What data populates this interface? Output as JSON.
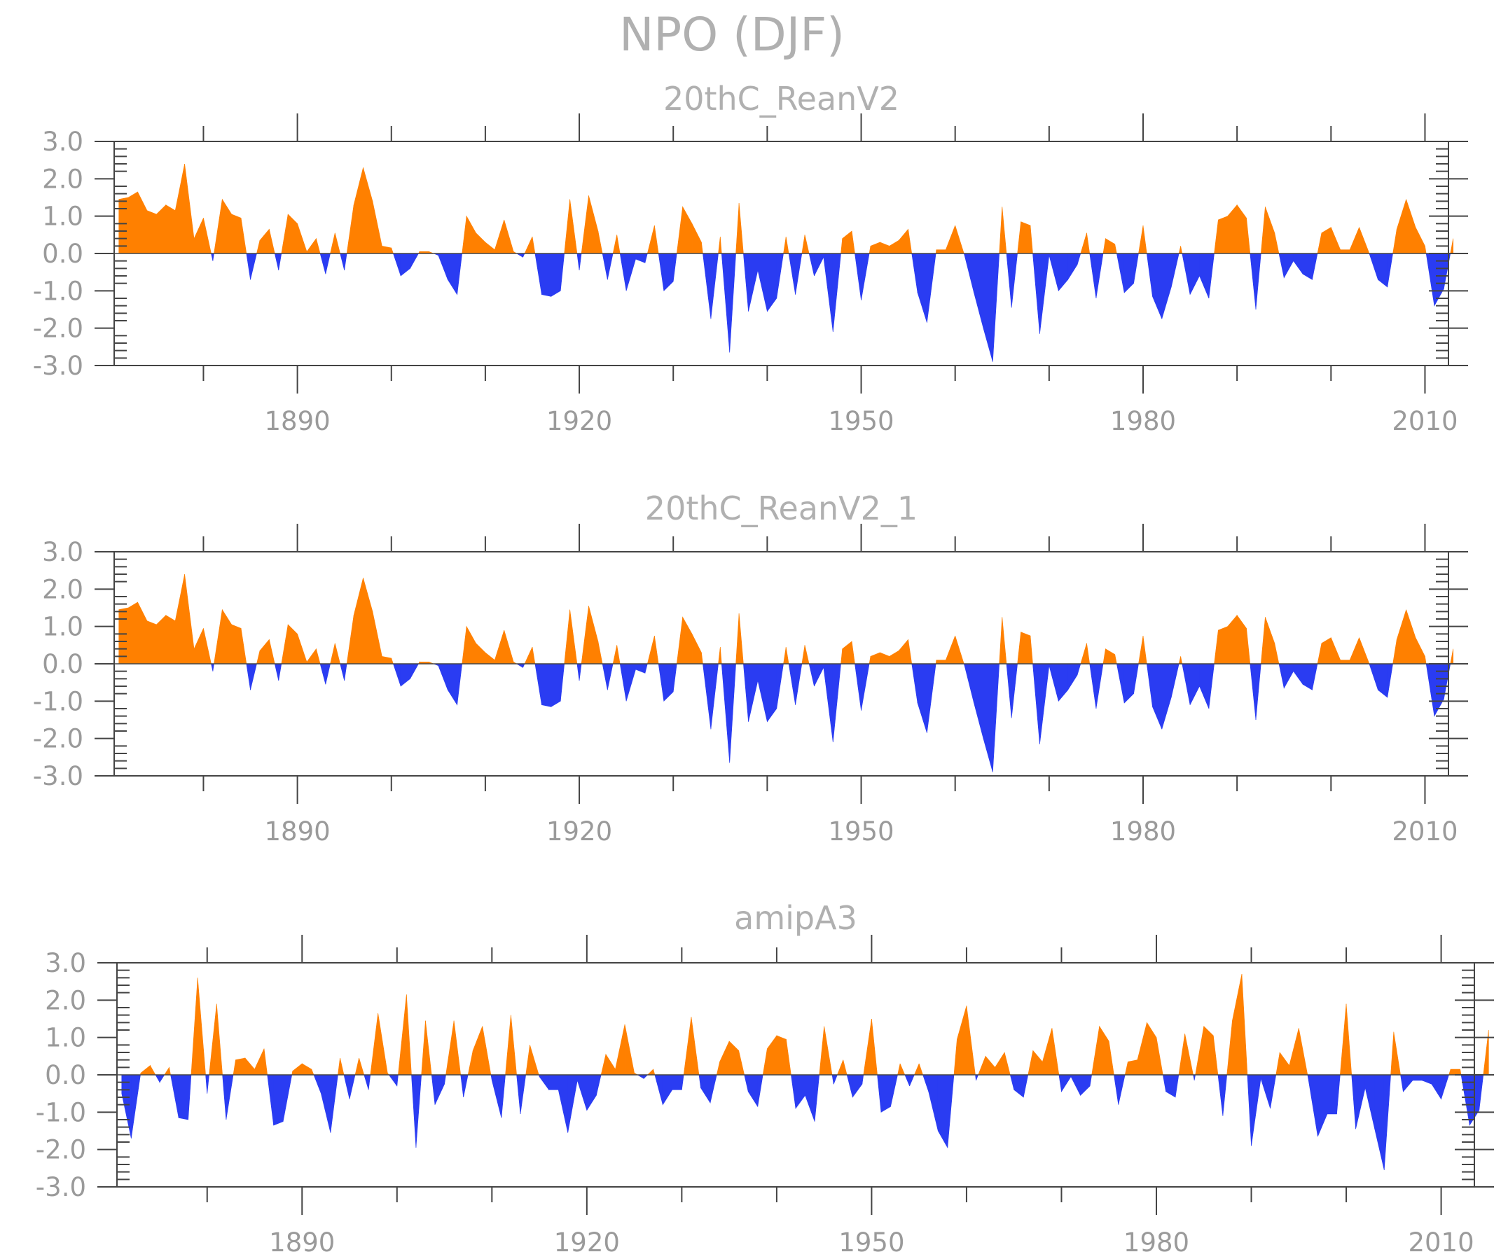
{
  "figure_title": "NPO (DJF)",
  "colors": {
    "positive": "#ff8000",
    "negative": "#2a3cf2",
    "axis": "#444444",
    "text": "#a0a0a0"
  },
  "chart_data": [
    {
      "type": "area",
      "title": "20thC_ReanV2",
      "xlabel": "",
      "ylabel": "",
      "ylim": [
        -3,
        3
      ],
      "yticks": [
        "3.0",
        "2.0",
        "1.0",
        "0.0",
        "-1.0",
        "-2.0",
        "-3.0"
      ],
      "xlim": [
        1870.5,
        2012.5
      ],
      "xticks": [
        "1890",
        "1920",
        "1950",
        "1980",
        "2010"
      ],
      "x_start": 1871,
      "values": [
        1.45,
        1.5,
        1.65,
        1.15,
        1.05,
        1.3,
        1.15,
        2.4,
        0.4,
        0.95,
        -0.2,
        1.45,
        1.05,
        0.95,
        -0.7,
        0.35,
        0.65,
        -0.45,
        1.05,
        0.8,
        0.05,
        0.4,
        -0.55,
        0.55,
        -0.45,
        1.3,
        2.3,
        1.4,
        0.2,
        0.15,
        -0.6,
        -0.4,
        0.05,
        0.05,
        -0.05,
        -0.7,
        -1.1,
        1.0,
        0.55,
        0.3,
        0.1,
        0.9,
        0.05,
        -0.1,
        0.45,
        -1.1,
        -1.15,
        -1.0,
        1.45,
        -0.45,
        1.55,
        0.6,
        -0.7,
        0.5,
        -1.0,
        -0.15,
        -0.25,
        0.75,
        -1.0,
        -0.75,
        1.25,
        0.8,
        0.3,
        -1.75,
        0.45,
        -2.65,
        1.35,
        -1.55,
        -0.45,
        -1.55,
        -1.2,
        0.45,
        -1.1,
        0.5,
        -0.6,
        -0.1,
        -2.1,
        0.4,
        0.6,
        -1.25,
        0.2,
        0.3,
        0.2,
        0.35,
        0.65,
        -1.05,
        -1.85,
        0.1,
        0.1,
        0.75,
        -0.05,
        -1.05,
        -2.0,
        -2.9,
        1.25,
        -1.45,
        0.85,
        0.75,
        -2.15,
        -0.05,
        -1.0,
        -0.7,
        -0.3,
        0.55,
        -1.2,
        0.4,
        0.25,
        -1.05,
        -0.8,
        0.75,
        -1.15,
        -1.75,
        -0.9,
        0.2,
        -1.1,
        -0.6,
        -1.2,
        0.9,
        1.0,
        1.3,
        0.95,
        -1.5,
        1.25,
        0.55,
        -0.65,
        -0.2,
        -0.55,
        -0.7,
        0.55,
        0.7,
        0.1,
        0.1,
        0.7,
        0.05,
        -0.7,
        -0.9,
        0.65,
        1.45,
        0.7,
        0.2,
        -1.4,
        -0.95,
        0.4
      ]
    },
    {
      "type": "area",
      "title": "20thC_ReanV2_1",
      "xlabel": "",
      "ylabel": "",
      "ylim": [
        -3,
        3
      ],
      "yticks": [
        "3.0",
        "2.0",
        "1.0",
        "0.0",
        "-1.0",
        "-2.0",
        "-3.0"
      ],
      "xlim": [
        1870.5,
        2012.5
      ],
      "xticks": [
        "1890",
        "1920",
        "1950",
        "1980",
        "2010"
      ],
      "x_start": 1871,
      "values": [
        1.45,
        1.5,
        1.65,
        1.15,
        1.05,
        1.3,
        1.15,
        2.4,
        0.4,
        0.95,
        -0.2,
        1.45,
        1.05,
        0.95,
        -0.7,
        0.35,
        0.65,
        -0.45,
        1.05,
        0.8,
        0.05,
        0.4,
        -0.55,
        0.55,
        -0.45,
        1.3,
        2.3,
        1.4,
        0.2,
        0.15,
        -0.6,
        -0.4,
        0.05,
        0.05,
        -0.05,
        -0.7,
        -1.1,
        1.0,
        0.55,
        0.3,
        0.1,
        0.9,
        0.05,
        -0.1,
        0.45,
        -1.1,
        -1.15,
        -1.0,
        1.45,
        -0.45,
        1.55,
        0.6,
        -0.7,
        0.5,
        -1.0,
        -0.15,
        -0.25,
        0.75,
        -1.0,
        -0.75,
        1.25,
        0.8,
        0.3,
        -1.75,
        0.45,
        -2.65,
        1.35,
        -1.55,
        -0.45,
        -1.55,
        -1.2,
        0.45,
        -1.1,
        0.5,
        -0.6,
        -0.1,
        -2.1,
        0.4,
        0.6,
        -1.25,
        0.2,
        0.3,
        0.2,
        0.35,
        0.65,
        -1.05,
        -1.85,
        0.1,
        0.1,
        0.75,
        -0.05,
        -1.05,
        -2.0,
        -2.9,
        1.25,
        -1.45,
        0.85,
        0.75,
        -2.15,
        -0.05,
        -1.0,
        -0.7,
        -0.3,
        0.55,
        -1.2,
        0.4,
        0.25,
        -1.05,
        -0.8,
        0.75,
        -1.15,
        -1.75,
        -0.9,
        0.2,
        -1.1,
        -0.6,
        -1.2,
        0.9,
        1.0,
        1.3,
        0.95,
        -1.5,
        1.25,
        0.55,
        -0.65,
        -0.2,
        -0.55,
        -0.7,
        0.55,
        0.7,
        0.1,
        0.1,
        0.7,
        0.05,
        -0.7,
        -0.9,
        0.65,
        1.45,
        0.7,
        0.2,
        -1.4,
        -0.95,
        0.4
      ]
    },
    {
      "type": "area",
      "title": "amipA3",
      "xlabel": "",
      "ylabel": "",
      "ylim": [
        -3,
        3
      ],
      "yticks": [
        "3.0",
        "2.0",
        "1.0",
        "0.0",
        "-1.0",
        "-2.0",
        "-3.0"
      ],
      "xlim": [
        1870.5,
        2013.5
      ],
      "xticks": [
        "1890",
        "1920",
        "1950",
        "1980",
        "2010"
      ],
      "x_start": 1871,
      "values": [
        -0.5,
        -1.7,
        0.05,
        0.25,
        -0.2,
        0.2,
        -1.15,
        -1.2,
        2.6,
        -0.5,
        1.9,
        -1.2,
        0.4,
        0.45,
        0.15,
        0.7,
        -1.35,
        -1.25,
        0.1,
        0.3,
        0.15,
        -0.5,
        -1.55,
        0.45,
        -0.65,
        0.45,
        -0.4,
        1.65,
        0.05,
        -0.3,
        2.15,
        -1.95,
        1.45,
        -0.8,
        -0.25,
        1.45,
        -0.6,
        0.65,
        1.3,
        -0.15,
        -1.15,
        1.6,
        -1.05,
        0.8,
        -0.05,
        -0.4,
        -0.4,
        -1.55,
        -0.15,
        -0.95,
        -0.55,
        0.55,
        0.15,
        1.35,
        0.05,
        -0.1,
        0.15,
        -0.8,
        -0.4,
        -0.4,
        1.55,
        -0.35,
        -0.75,
        0.35,
        0.9,
        0.65,
        -0.45,
        -0.85,
        0.7,
        1.05,
        0.95,
        -0.9,
        -0.55,
        -1.25,
        1.3,
        -0.25,
        0.4,
        -0.6,
        -0.25,
        1.5,
        -1.0,
        -0.85,
        0.3,
        -0.3,
        0.3,
        -0.45,
        -1.5,
        -1.95,
        0.95,
        1.85,
        -0.15,
        0.5,
        0.2,
        0.6,
        -0.4,
        -0.6,
        0.65,
        0.35,
        1.25,
        -0.45,
        -0.05,
        -0.55,
        -0.3,
        1.3,
        0.9,
        -0.8,
        0.35,
        0.4,
        1.4,
        1.0,
        -0.45,
        -0.6,
        1.1,
        -0.15,
        1.3,
        1.05,
        -1.1,
        1.45,
        2.7,
        -1.9,
        -0.1,
        -0.9,
        0.6,
        0.25,
        1.25,
        -0.1,
        -1.65,
        -1.05,
        -1.05,
        1.9,
        -1.45,
        -0.35,
        -1.45,
        -2.55,
        1.15,
        -0.45,
        -0.15,
        -0.15,
        -0.25,
        -0.65,
        0.15,
        0.15,
        -1.35,
        -0.95,
        1.2
      ]
    }
  ]
}
